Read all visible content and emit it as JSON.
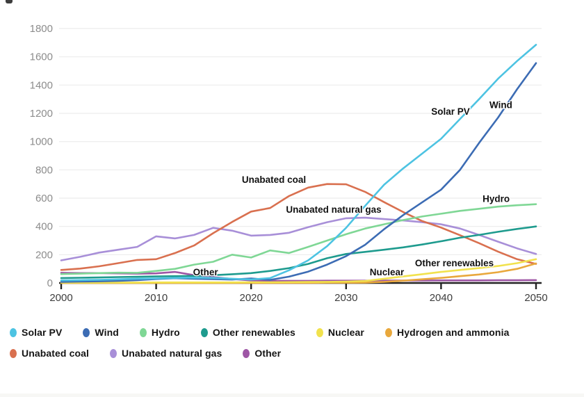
{
  "page": {
    "background_color": "#ffffff",
    "has_top_left_artifact": true
  },
  "chart_data": {
    "type": "line",
    "title": "",
    "xlabel": "",
    "ylabel": "",
    "xlim": [
      2000,
      2050
    ],
    "ylim": [
      0,
      1800
    ],
    "x_ticks": [
      2000,
      2010,
      2020,
      2030,
      2040,
      2050
    ],
    "y_ticks": [
      0,
      200,
      400,
      600,
      800,
      1000,
      1200,
      1400,
      1600,
      1800
    ],
    "grid": "horizontal",
    "legend_position": "bottom",
    "x": [
      2000,
      2002,
      2004,
      2006,
      2008,
      2010,
      2012,
      2014,
      2016,
      2018,
      2020,
      2022,
      2024,
      2026,
      2028,
      2030,
      2032,
      2034,
      2036,
      2038,
      2040,
      2042,
      2044,
      2046,
      2048,
      2050
    ],
    "series": [
      {
        "name": "Solar PV",
        "color": "#4dc3e2",
        "values": [
          18,
          20,
          22,
          26,
          30,
          32,
          36,
          38,
          36,
          30,
          24,
          35,
          90,
          160,
          260,
          390,
          545,
          695,
          810,
          915,
          1020,
          1160,
          1300,
          1445,
          1570,
          1685
        ]
      },
      {
        "name": "Wind",
        "color": "#3c6cb4",
        "values": [
          8,
          10,
          12,
          15,
          20,
          28,
          34,
          30,
          27,
          24,
          32,
          22,
          45,
          80,
          130,
          190,
          270,
          380,
          480,
          570,
          660,
          800,
          990,
          1170,
          1370,
          1555
        ]
      },
      {
        "name": "Hydro",
        "color": "#7fd795",
        "values": [
          63,
          66,
          70,
          73,
          72,
          85,
          100,
          130,
          150,
          200,
          180,
          230,
          212,
          255,
          300,
          345,
          385,
          415,
          445,
          470,
          490,
          510,
          525,
          540,
          550,
          557
        ]
      },
      {
        "name": "Other renewables",
        "color": "#1e9b8e",
        "values": [
          35,
          37,
          39,
          42,
          44,
          46,
          48,
          50,
          55,
          62,
          70,
          85,
          105,
          135,
          175,
          205,
          220,
          235,
          252,
          272,
          295,
          320,
          340,
          362,
          382,
          400
        ]
      },
      {
        "name": "Nuclear",
        "color": "#f1e24d",
        "values": [
          3,
          3,
          3,
          3,
          3,
          4,
          4,
          4,
          4,
          4,
          5,
          5,
          6,
          7,
          8,
          10,
          14,
          30,
          46,
          62,
          78,
          92,
          105,
          120,
          140,
          168
        ]
      },
      {
        "name": "Hydrogen and ammonia",
        "color": "#e9a83c",
        "values": [
          0,
          0,
          0,
          0,
          0,
          0,
          0,
          0,
          0,
          0,
          0,
          0,
          1,
          1,
          2,
          2,
          3,
          8,
          16,
          26,
          36,
          48,
          60,
          76,
          100,
          138
        ]
      },
      {
        "name": "Unabated coal",
        "color": "#d9704f",
        "values": [
          92,
          102,
          118,
          140,
          163,
          168,
          212,
          265,
          352,
          432,
          505,
          530,
          615,
          675,
          700,
          698,
          645,
          572,
          502,
          438,
          392,
          338,
          282,
          222,
          168,
          135
        ]
      },
      {
        "name": "Unabated natural gas",
        "color": "#a88fd8",
        "values": [
          160,
          185,
          215,
          235,
          255,
          330,
          315,
          340,
          390,
          370,
          335,
          340,
          355,
          395,
          430,
          458,
          462,
          452,
          442,
          430,
          415,
          385,
          340,
          292,
          245,
          205
        ]
      },
      {
        "name": "Other",
        "color": "#9e56a5",
        "values": [
          72,
          70,
          70,
          68,
          66,
          68,
          78,
          55,
          42,
          28,
          18,
          15,
          15,
          15,
          16,
          16,
          16,
          17,
          17,
          17,
          18,
          18,
          18,
          19,
          19,
          20
        ]
      }
    ],
    "draw_order": [
      "Other",
      "Unabated natural gas",
      "Unabated coal",
      "Hydro",
      "Other renewables",
      "Hydrogen and ammonia",
      "Nuclear",
      "Wind",
      "Solar PV"
    ],
    "annotations": [
      {
        "text": "Unabated coal",
        "year": 2022.4,
        "value": 733
      },
      {
        "text": "Unabated natural gas",
        "year": 2028.7,
        "value": 521
      },
      {
        "text": "Solar PV",
        "year": 2041.0,
        "value": 1215
      },
      {
        "text": "Wind",
        "year": 2046.3,
        "value": 1262
      },
      {
        "text": "Hydro",
        "year": 2045.8,
        "value": 597
      },
      {
        "text": "Other renewables",
        "year": 2041.4,
        "value": 143
      },
      {
        "text": "Nuclear",
        "year": 2034.3,
        "value": 79
      },
      {
        "text": "Other",
        "year": 2015.2,
        "value": 79
      }
    ],
    "style": {
      "grid_color": "#ececec",
      "axis_color": "#222222",
      "y_tick_label_color": "#8c8c8c",
      "x_tick_label_color": "#3d3d3d",
      "annotation_color": "#111111"
    }
  },
  "legend": {
    "rows": [
      [
        {
          "label": "Solar PV",
          "color": "#4dc3e2"
        },
        {
          "label": "Wind",
          "color": "#3c6cb4"
        },
        {
          "label": "Hydro",
          "color": "#7fd795"
        },
        {
          "label": "Other renewables",
          "color": "#1e9b8e"
        },
        {
          "label": "Nuclear",
          "color": "#f1e24d"
        },
        {
          "label": "Hydrogen and ammonia",
          "color": "#e9a83c"
        }
      ],
      [
        {
          "label": "Unabated coal",
          "color": "#d9704f"
        },
        {
          "label": "Unabated natural gas",
          "color": "#a88fd8"
        },
        {
          "label": "Other",
          "color": "#9e56a5"
        }
      ]
    ]
  }
}
